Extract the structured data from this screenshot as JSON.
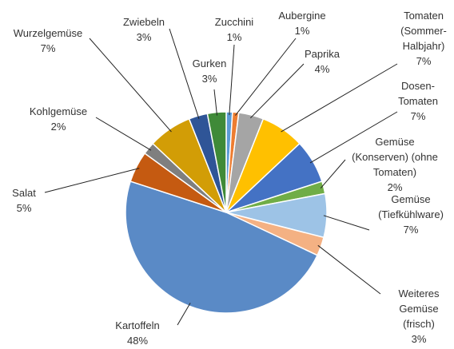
{
  "chart_data": {
    "type": "pie",
    "categories": [
      "Zucchini",
      "Aubergine",
      "Paprika",
      "Tomaten (Sommer-Halbjahr)",
      "Dosen-Tomaten",
      "Gemüse (Konserven) (ohne Tomaten)",
      "Gemüse (Tiefkühlware)",
      "Weiteres Gemüse (frisch)",
      "Kartoffeln",
      "Salat",
      "Kohlgemüse",
      "Wurzelgemüse",
      "Zwiebeln",
      "Gurken"
    ],
    "values": [
      1,
      1,
      4,
      7,
      7,
      2,
      7,
      3,
      48,
      5,
      2,
      7,
      3,
      3
    ],
    "value_labels": [
      "1%",
      "1%",
      "4%",
      "7%",
      "7%",
      "2%",
      "7%",
      "3%",
      "48%",
      "5%",
      "2%",
      "7%",
      "3%",
      "3%"
    ],
    "colors": [
      "#5b9bd5",
      "#ed7d31",
      "#a5a5a5",
      "#ffc000",
      "#4472c4",
      "#70ad47",
      "#9dc3e6",
      "#f4b183",
      "#5a8ac6",
      "#c55a11",
      "#7f7f7f",
      "#d29d06",
      "#2f5597",
      "#3f8a38"
    ]
  }
}
